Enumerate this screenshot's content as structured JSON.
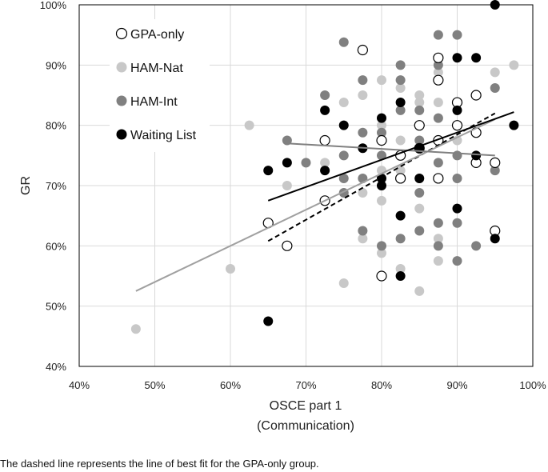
{
  "chart_data": {
    "type": "scatter",
    "xlabel_line1": "OSCE part 1",
    "xlabel_line2": "(Communication)",
    "ylabel": "GR",
    "xlim": [
      40,
      100
    ],
    "ylim": [
      40,
      100
    ],
    "x_ticks": [
      "40%",
      "50%",
      "60%",
      "70%",
      "80%",
      "90%",
      "100%"
    ],
    "y_ticks": [
      "40%",
      "50%",
      "60%",
      "70%",
      "80%",
      "90%",
      "100%"
    ],
    "grid": true,
    "legend_position": "top-left",
    "series": [
      {
        "name": "GPA-only",
        "marker": "open-circle",
        "color": "#000000",
        "points": [
          [
            77.5,
            92.5
          ],
          [
            87.5,
            91.2
          ],
          [
            87.5,
            87.5
          ],
          [
            90,
            83.8
          ],
          [
            92.5,
            85
          ],
          [
            85,
            80
          ],
          [
            87.5,
            77.5
          ],
          [
            90,
            80
          ],
          [
            92.5,
            78.8
          ],
          [
            80,
            77.5
          ],
          [
            72.5,
            77.5
          ],
          [
            85,
            76.2
          ],
          [
            82.5,
            75
          ],
          [
            95,
            73.8
          ],
          [
            92.5,
            73.8
          ],
          [
            72.5,
            67.5
          ],
          [
            82.5,
            71.2
          ],
          [
            87.5,
            71.2
          ],
          [
            65,
            63.8
          ],
          [
            67.5,
            60
          ],
          [
            95,
            62.5
          ],
          [
            80,
            55
          ]
        ],
        "fit_line": {
          "style": "dashed",
          "color": "#000000",
          "x": [
            65,
            95
          ],
          "y": [
            60.8,
            82
          ]
        }
      },
      {
        "name": "HAM-Nat",
        "marker": "filled-circle",
        "color": "#c8c8c8",
        "points": [
          [
            47.5,
            46.2
          ],
          [
            60,
            56.2
          ],
          [
            62.5,
            80
          ],
          [
            67.5,
            70
          ],
          [
            72.5,
            73.8
          ],
          [
            75,
            83.8
          ],
          [
            75,
            53.8
          ],
          [
            77.5,
            85
          ],
          [
            77.5,
            68.8
          ],
          [
            77.5,
            61.2
          ],
          [
            80,
            87.5
          ],
          [
            80,
            80
          ],
          [
            80,
            67.5
          ],
          [
            80,
            58.8
          ],
          [
            82.5,
            86.2
          ],
          [
            82.5,
            77.5
          ],
          [
            82.5,
            72.5
          ],
          [
            82.5,
            56.2
          ],
          [
            85,
            85
          ],
          [
            85,
            83.8
          ],
          [
            85,
            66.2
          ],
          [
            85,
            52.5
          ],
          [
            87.5,
            88.8
          ],
          [
            87.5,
            83.8
          ],
          [
            87.5,
            61.2
          ],
          [
            87.5,
            57.5
          ],
          [
            90,
            77.5
          ],
          [
            95,
            88.8
          ],
          [
            97.5,
            90
          ],
          [
            85,
            71.2
          ],
          [
            80,
            72.5
          ]
        ],
        "fit_line": {
          "style": "solid",
          "color": "#a0a0a0",
          "x": [
            47.5,
            95
          ],
          "y": [
            52.5,
            81
          ]
        }
      },
      {
        "name": "HAM-Int",
        "marker": "filled-circle",
        "color": "#808080",
        "points": [
          [
            67.5,
            77.5
          ],
          [
            70,
            73.8
          ],
          [
            72.5,
            85
          ],
          [
            75,
            93.8
          ],
          [
            75,
            75
          ],
          [
            75,
            71.2
          ],
          [
            75,
            68.8
          ],
          [
            77.5,
            87.5
          ],
          [
            77.5,
            78.8
          ],
          [
            77.5,
            71.2
          ],
          [
            77.5,
            62.5
          ],
          [
            80,
            78.8
          ],
          [
            80,
            75
          ],
          [
            80,
            60
          ],
          [
            82.5,
            90
          ],
          [
            82.5,
            87.5
          ],
          [
            82.5,
            82.5
          ],
          [
            82.5,
            75
          ],
          [
            82.5,
            61.2
          ],
          [
            85,
            82.5
          ],
          [
            85,
            77.5
          ],
          [
            85,
            68.8
          ],
          [
            85,
            62.5
          ],
          [
            87.5,
            95
          ],
          [
            87.5,
            90
          ],
          [
            87.5,
            81.2
          ],
          [
            87.5,
            73.8
          ],
          [
            87.5,
            63.8
          ],
          [
            87.5,
            60
          ],
          [
            90,
            95
          ],
          [
            90,
            75
          ],
          [
            90,
            71.2
          ],
          [
            90,
            63.8
          ],
          [
            90,
            57.5
          ],
          [
            92.5,
            60
          ],
          [
            95,
            86.2
          ],
          [
            95,
            72.5
          ]
        ],
        "fit_line": {
          "style": "solid",
          "color": "#808080",
          "x": [
            67.5,
            95
          ],
          "y": [
            77,
            75
          ]
        }
      },
      {
        "name": "Waiting List",
        "marker": "filled-circle",
        "color": "#000000",
        "points": [
          [
            65,
            72.5
          ],
          [
            65,
            47.5
          ],
          [
            67.5,
            73.8
          ],
          [
            72.5,
            82.5
          ],
          [
            72.5,
            72.5
          ],
          [
            75,
            80
          ],
          [
            77.5,
            76.2
          ],
          [
            80,
            81.2
          ],
          [
            80,
            71.2
          ],
          [
            80,
            70
          ],
          [
            82.5,
            83.8
          ],
          [
            82.5,
            65
          ],
          [
            82.5,
            55
          ],
          [
            85,
            76.2
          ],
          [
            85,
            71.2
          ],
          [
            90,
            91.2
          ],
          [
            90,
            82.5
          ],
          [
            90,
            66.2
          ],
          [
            92.5,
            91.2
          ],
          [
            92.5,
            75
          ],
          [
            95,
            100
          ],
          [
            95,
            61.2
          ],
          [
            97.5,
            80
          ]
        ],
        "fit_line": {
          "style": "solid",
          "color": "#000000",
          "x": [
            65,
            97.5
          ],
          "y": [
            67.5,
            82.2
          ]
        }
      }
    ]
  },
  "caption": "The dashed line represents the line of best fit for the GPA-only group."
}
